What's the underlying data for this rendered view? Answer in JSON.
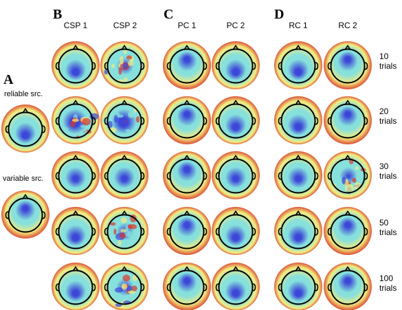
{
  "panels": {
    "A": {
      "letter": "A",
      "sources": [
        {
          "label": "reliable src.",
          "map": "reliable"
        },
        {
          "label": "variable src.",
          "map": "variable"
        }
      ]
    },
    "B": {
      "letter": "B",
      "columns": [
        "CSP 1",
        "CSP 2"
      ]
    },
    "C": {
      "letter": "C",
      "columns": [
        "PC 1",
        "PC 2"
      ]
    },
    "D": {
      "letter": "D",
      "columns": [
        "RC 1",
        "RC 2"
      ]
    }
  },
  "rows": [
    {
      "count": "10",
      "unit": "trials"
    },
    {
      "count": "20",
      "unit": "trials"
    },
    {
      "count": "30",
      "unit": "trials"
    },
    {
      "count": "50",
      "unit": "trials"
    },
    {
      "count": "100",
      "unit": "trials"
    }
  ],
  "colors": {
    "blue": "#3c46d8",
    "cyan": "#86e0dc",
    "yellow": "#f2ec7e",
    "red": "#d9392c"
  }
}
